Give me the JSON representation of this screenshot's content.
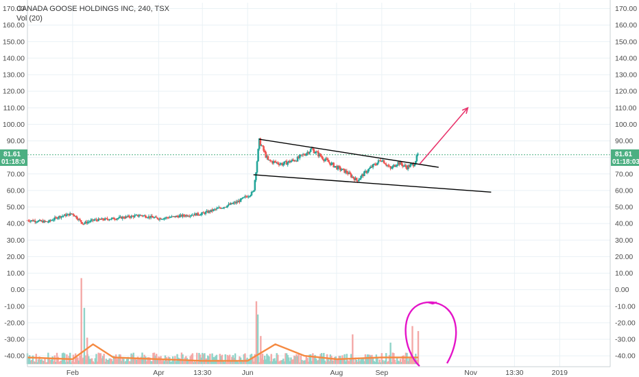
{
  "header": {
    "title": "CANADA GOOSE HOLDINGS INC, 240, TSX",
    "volume_label": "Vol (20)"
  },
  "badges": {
    "price": "81.61",
    "countdown_left": "01:18:0",
    "countdown_right": "01:18:03"
  },
  "colors": {
    "up": "#26a69a",
    "down": "#ef5350",
    "up_vol": "#8fd3c8",
    "down_vol": "#f4a9a7",
    "vol_ma": "#f58a42",
    "badge": "#4caf82",
    "annotation_arrow": "#e8336b",
    "annotation_circle": "#e414c8",
    "trendline": "#000000",
    "grid": "#e9f1f5"
  },
  "chart_data": {
    "type": "candlestick",
    "title": "CANADA GOOSE HOLDINGS INC, 240, TSX",
    "ylim": [
      -47,
      175
    ],
    "y_ticks": [
      170,
      160,
      150,
      140,
      130,
      120,
      110,
      100,
      90,
      80,
      70,
      60,
      50,
      40,
      30,
      20,
      10,
      0,
      -10,
      -20,
      -30,
      -40
    ],
    "y_tick_labels": [
      "170.00",
      "160.00",
      "150.00",
      "140.00",
      "130.00",
      "120.00",
      "110.00",
      "100.00",
      "90.00",
      "80.00",
      "70.00",
      "60.00",
      "50.00",
      "40.00",
      "30.00",
      "20.00",
      "10.00",
      "0.00",
      "-10.00",
      "-20.00",
      "-30.00",
      "-40.00"
    ],
    "x_ticks": [
      {
        "label": "Feb",
        "date": "2018-02-01"
      },
      {
        "label": "Apr",
        "date": "2018-04-01"
      },
      {
        "label": "13:30",
        "date": "2018-05-01"
      },
      {
        "label": "Jun",
        "date": "2018-06-01"
      },
      {
        "label": "Aug",
        "date": "2018-08-01"
      },
      {
        "label": "Sep",
        "date": "2018-09-01"
      },
      {
        "label": "Nov",
        "date": "2018-11-01"
      },
      {
        "label": "13:30",
        "date": "2018-12-01"
      },
      {
        "label": "2019",
        "date": "2019-01-01"
      }
    ],
    "last_price": 81.61,
    "price_path": [
      {
        "date": "2018-01-01",
        "price": 42
      },
      {
        "date": "2018-01-15",
        "price": 41
      },
      {
        "date": "2018-01-22",
        "price": 44
      },
      {
        "date": "2018-02-01",
        "price": 46
      },
      {
        "date": "2018-02-08",
        "price": 40
      },
      {
        "date": "2018-02-15",
        "price": 42
      },
      {
        "date": "2018-03-01",
        "price": 43
      },
      {
        "date": "2018-03-20",
        "price": 45
      },
      {
        "date": "2018-04-01",
        "price": 43
      },
      {
        "date": "2018-04-20",
        "price": 45
      },
      {
        "date": "2018-05-01",
        "price": 46
      },
      {
        "date": "2018-05-15",
        "price": 50
      },
      {
        "date": "2018-05-25",
        "price": 53
      },
      {
        "date": "2018-06-05",
        "price": 59
      },
      {
        "date": "2018-06-07",
        "price": 74
      },
      {
        "date": "2018-06-09",
        "price": 90
      },
      {
        "date": "2018-06-15",
        "price": 78
      },
      {
        "date": "2018-06-25",
        "price": 76
      },
      {
        "date": "2018-07-05",
        "price": 79
      },
      {
        "date": "2018-07-15",
        "price": 85
      },
      {
        "date": "2018-07-25",
        "price": 78
      },
      {
        "date": "2018-08-01",
        "price": 74
      },
      {
        "date": "2018-08-08",
        "price": 71
      },
      {
        "date": "2018-08-15",
        "price": 66
      },
      {
        "date": "2018-08-22",
        "price": 72
      },
      {
        "date": "2018-09-01",
        "price": 79
      },
      {
        "date": "2018-09-07",
        "price": 73
      },
      {
        "date": "2018-09-12",
        "price": 77
      },
      {
        "date": "2018-09-18",
        "price": 74
      },
      {
        "date": "2018-09-23",
        "price": 76
      },
      {
        "date": "2018-09-26",
        "price": 82
      }
    ],
    "volume": {
      "base": -45,
      "baseline_range": [
        -44,
        -38
      ],
      "spikes": [
        {
          "date": "2018-02-07",
          "value": 7
        },
        {
          "date": "2018-02-09",
          "value": -11
        },
        {
          "date": "2018-02-11",
          "value": -29
        },
        {
          "date": "2018-06-07",
          "value": -7
        },
        {
          "date": "2018-06-08",
          "value": -15
        },
        {
          "date": "2018-06-10",
          "value": -28
        },
        {
          "date": "2018-08-12",
          "value": -27
        },
        {
          "date": "2018-09-07",
          "value": -32
        },
        {
          "date": "2018-09-22",
          "value": -22
        },
        {
          "date": "2018-09-26",
          "value": -25
        }
      ],
      "ma_path": [
        {
          "date": "2018-01-01",
          "value": -41
        },
        {
          "date": "2018-02-01",
          "value": -42
        },
        {
          "date": "2018-02-15",
          "value": -33
        },
        {
          "date": "2018-03-01",
          "value": -41
        },
        {
          "date": "2018-04-01",
          "value": -42
        },
        {
          "date": "2018-05-01",
          "value": -43
        },
        {
          "date": "2018-06-01",
          "value": -43
        },
        {
          "date": "2018-06-20",
          "value": -33
        },
        {
          "date": "2018-07-10",
          "value": -40
        },
        {
          "date": "2018-08-01",
          "value": -42
        },
        {
          "date": "2018-09-01",
          "value": -41
        },
        {
          "date": "2018-09-26",
          "value": -41
        }
      ]
    },
    "annotations": {
      "upper_trendline": [
        {
          "date": "2018-06-09",
          "price": 91
        },
        {
          "date": "2018-10-10",
          "price": 74
        }
      ],
      "lower_trendline": [
        {
          "date": "2018-06-05",
          "price": 69.5
        },
        {
          "date": "2018-11-15",
          "price": 59
        }
      ],
      "arrow": [
        {
          "date": "2018-09-27",
          "price": 76
        },
        {
          "date": "2018-10-30",
          "price": 110
        }
      ],
      "circle_center": {
        "date": "2018-09-25",
        "price": -30
      }
    }
  }
}
